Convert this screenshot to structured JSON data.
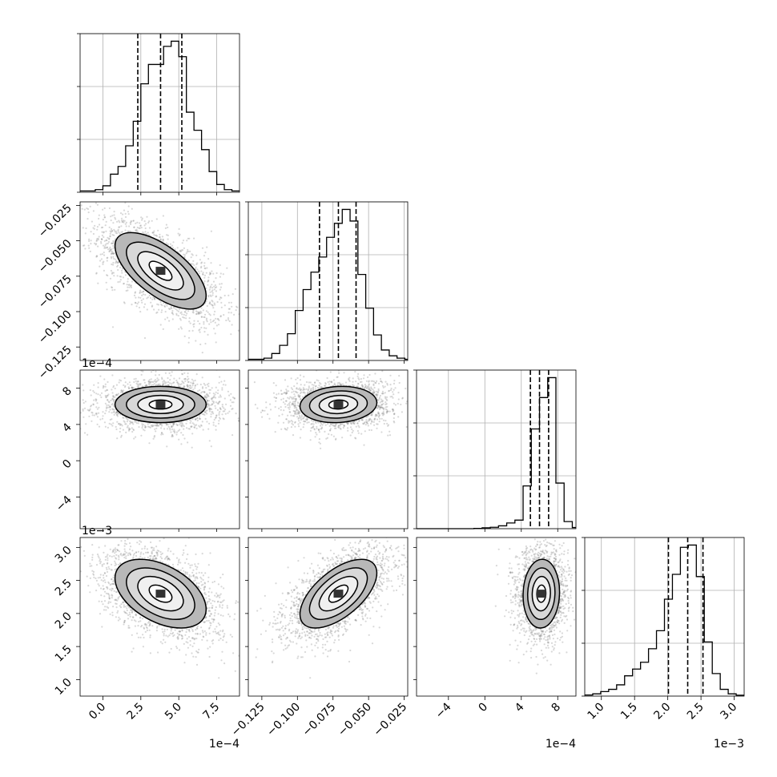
{
  "chart_data": {
    "type": "corner",
    "grid": true,
    "parameters": [
      {
        "range": [
          -0.00015,
          0.0009
        ],
        "ticks": [
          0,
          0.00025,
          0.0005,
          0.00075
        ],
        "tick_labels": [
          "0.0",
          "2.5",
          "5.0",
          "7.5"
        ],
        "offset_label": "1e−4",
        "quantiles": [
          0.00023,
          0.00038,
          0.00052
        ]
      },
      {
        "range": [
          -0.1345,
          -0.0225
        ],
        "ticks": [
          -0.125,
          -0.1,
          -0.075,
          -0.05,
          -0.025
        ],
        "tick_labels": [
          "−0.125",
          "−0.100",
          "−0.075",
          "−0.050",
          "−0.025"
        ],
        "offset_label": "",
        "quantiles": [
          -0.0845,
          -0.0712,
          -0.0588
        ]
      },
      {
        "range": [
          -0.00075,
          0.001
        ],
        "ticks": [
          -0.0004,
          0,
          0.0004,
          0.0008
        ],
        "tick_labels": [
          "−4",
          "0",
          "4",
          "8"
        ],
        "offset_label": "1e−4",
        "quantiles": [
          0.0005,
          0.0006,
          0.0007
        ]
      },
      {
        "range": [
          0.00075,
          0.00315
        ],
        "ticks": [
          0.001,
          0.0015,
          0.002,
          0.0025,
          0.003
        ],
        "tick_labels": [
          "1.0",
          "1.5",
          "2.0",
          "2.5",
          "3.0"
        ],
        "offset_label": "1e−3",
        "quantiles": [
          0.00201,
          0.0023,
          0.00253
        ]
      }
    ],
    "histograms": [
      {
        "bin_edges": [
          -0.00015,
          -0.0001,
          -5e-05,
          0,
          5e-05,
          0.0001,
          0.00015,
          0.0002,
          0.00025,
          0.0003,
          0.00035,
          0.0004,
          0.00045,
          0.0005,
          0.00055,
          0.0006,
          0.00065,
          0.0007,
          0.00075,
          0.0008,
          0.00085,
          0.0009
        ],
        "counts": [
          0.01,
          0.01,
          0.02,
          0.05,
          0.14,
          0.2,
          0.36,
          0.55,
          0.84,
          0.99,
          0.99,
          1.13,
          1.17,
          1.05,
          0.62,
          0.48,
          0.33,
          0.16,
          0.06,
          0.02,
          0.01
        ]
      },
      {
        "bin_edges": [
          -0.1345,
          -0.129,
          -0.1235,
          -0.118,
          -0.1125,
          -0.107,
          -0.1015,
          -0.096,
          -0.0905,
          -0.085,
          -0.0795,
          -0.074,
          -0.0685,
          -0.063,
          -0.0575,
          -0.052,
          -0.0465,
          -0.041,
          -0.0355,
          -0.03,
          -0.0245,
          -0.0225
        ],
        "counts": [
          0.01,
          0.01,
          0.02,
          0.06,
          0.13,
          0.23,
          0.43,
          0.61,
          0.76,
          0.89,
          1.06,
          1.18,
          1.3,
          1.2,
          0.74,
          0.45,
          0.22,
          0.09,
          0.04,
          0.02,
          0.01
        ]
      },
      {
        "bin_edges": [
          -0.00075,
          -0.00066,
          -0.00057,
          -0.00048,
          -0.00039,
          -0.0003,
          -0.00021,
          -0.00012,
          -3e-05,
          6e-05,
          0.00015,
          0.00024,
          0.00033,
          0.00042,
          0.00051,
          0.0006,
          0.00069,
          0.00078,
          0.00087,
          0.00096,
          0.001
        ],
        "counts": [
          0,
          0,
          0,
          0,
          0,
          0,
          0,
          0.001,
          0.003,
          0.005,
          0.01,
          0.02,
          0.03,
          0.15,
          0.35,
          0.46,
          0.53,
          0.16,
          0.025,
          0.004
        ]
      },
      {
        "bin_edges": [
          0.00075,
          0.00087,
          0.00099,
          0.00111,
          0.00123,
          0.00135,
          0.00147,
          0.00159,
          0.00171,
          0.00183,
          0.00195,
          0.00207,
          0.00219,
          0.00231,
          0.00243,
          0.00255,
          0.00267,
          0.00279,
          0.00291,
          0.00303,
          0.00315
        ],
        "counts": [
          0.005,
          0.01,
          0.02,
          0.03,
          0.05,
          0.09,
          0.12,
          0.15,
          0.21,
          0.29,
          0.43,
          0.54,
          0.66,
          0.67,
          0.53,
          0.24,
          0.1,
          0.03,
          0.01,
          0.004
        ]
      }
    ],
    "pair_distributions": [
      {
        "row": 1,
        "col": 0,
        "center": [
          0.00038,
          -0.0712
        ],
        "sd": [
          0.00015,
          0.0135
        ],
        "corr": -0.65
      },
      {
        "row": 2,
        "col": 0,
        "center": [
          0.00038,
          0.00062
        ],
        "sd": [
          0.00015,
          0.0001
        ],
        "corr": 0
      },
      {
        "row": 2,
        "col": 1,
        "center": [
          -0.0712,
          0.00062
        ],
        "sd": [
          0.0135,
          0.0001
        ],
        "corr": 0.1
      },
      {
        "row": 3,
        "col": 0,
        "center": [
          0.00038,
          0.0023
        ],
        "sd": [
          0.00015,
          0.00026
        ],
        "corr": -0.45
      },
      {
        "row": 3,
        "col": 1,
        "center": [
          -0.0712,
          0.0023
        ],
        "sd": [
          0.0135,
          0.00026
        ],
        "corr": 0.6
      },
      {
        "row": 3,
        "col": 2,
        "center": [
          0.00062,
          0.0023
        ],
        "sd": [
          0.0001,
          0.00026
        ],
        "corr": 0.05
      }
    ]
  }
}
